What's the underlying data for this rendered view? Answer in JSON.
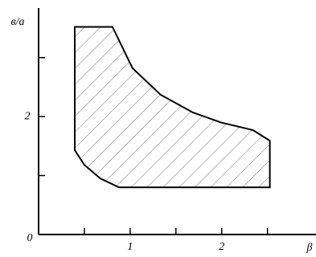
{
  "chart_data": {
    "type": "polygon",
    "x_label": "β",
    "y_label": "в/а",
    "x": [
      0.395,
      0.807,
      1.026,
      1.333,
      1.684,
      1.991,
      2.342,
      2.526,
      2.526,
      0.877,
      0.675,
      0.5,
      0.395
    ],
    "y": [
      3.52,
      3.52,
      2.82,
      2.37,
      2.07,
      1.9,
      1.77,
      1.59,
      0.8,
      0.8,
      0.95,
      1.18,
      1.43
    ],
    "fill": "hatch",
    "color": "#000000",
    "xlim": [
      0,
      3.03
    ],
    "ylim": [
      0,
      3.84
    ],
    "xticks": [
      0,
      1,
      2
    ],
    "xminor_ticks": [
      0.5,
      1.5,
      2.5
    ],
    "yticks": [
      2
    ],
    "yminor_ticks": [
      1,
      3
    ]
  }
}
